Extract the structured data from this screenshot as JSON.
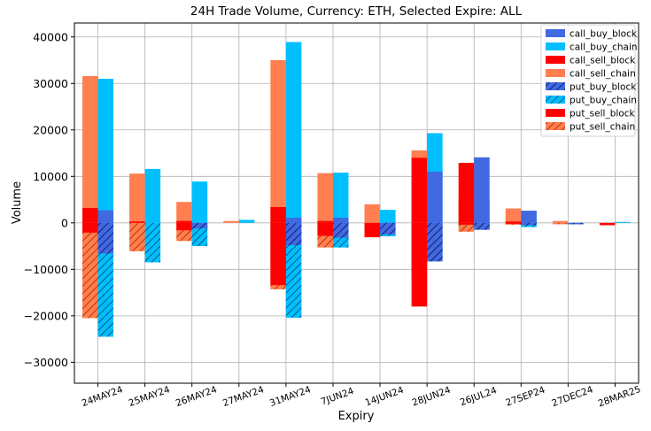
{
  "chart_data": {
    "type": "bar",
    "title": "24H Trade Volume, Currency: ETH, Selected Expire: ALL",
    "xlabel": "Expiry",
    "ylabel": "Volume",
    "ylim": [
      -34500,
      43000
    ],
    "yticks": [
      -30000,
      -20000,
      -10000,
      0,
      10000,
      20000,
      30000,
      40000
    ],
    "ytick_labels": [
      "−30000",
      "−20000",
      "−10000",
      "0",
      "10000",
      "20000",
      "30000",
      "40000"
    ],
    "grid": true,
    "legend_position": "top-right",
    "categories": [
      "24MAY24",
      "25MAY24",
      "26MAY24",
      "27MAY24",
      "31MAY24",
      "7JUN24",
      "14JUN24",
      "28JUN24",
      "26JUL24",
      "27SEP24",
      "27DEC24",
      "28MAR25"
    ],
    "series": [
      {
        "name": "call_buy_block",
        "group": "buy",
        "side": "call",
        "color": "#4169e1",
        "hatch": false,
        "values": [
          2700,
          0,
          0,
          0,
          1100,
          1100,
          0,
          11000,
          14100,
          2600,
          0,
          0
        ]
      },
      {
        "name": "call_buy_chain",
        "group": "buy",
        "side": "call",
        "color": "#00bfff",
        "hatch": false,
        "values": [
          31000,
          11600,
          8900,
          650,
          38900,
          10800,
          2800,
          19300,
          4500,
          2600,
          0,
          200
        ]
      },
      {
        "name": "call_sell_block",
        "group": "sell",
        "side": "call",
        "color": "#ff0000",
        "hatch": false,
        "values": [
          3200,
          300,
          400,
          0,
          3400,
          400,
          0,
          14000,
          12900,
          300,
          0,
          0
        ]
      },
      {
        "name": "call_sell_chain",
        "group": "sell",
        "side": "call",
        "color": "#ff7f50",
        "hatch": false,
        "values": [
          31600,
          10600,
          4500,
          400,
          35000,
          10700,
          4000,
          15600,
          5500,
          3100,
          400,
          0
        ]
      },
      {
        "name": "put_buy_block",
        "group": "buy",
        "side": "put",
        "color": "#4169e1",
        "hatch": true,
        "values": [
          -6600,
          0,
          -1200,
          0,
          -4800,
          -3200,
          -2500,
          -8300,
          -1500,
          -500,
          -300,
          0
        ]
      },
      {
        "name": "put_buy_chain",
        "group": "buy",
        "side": "put",
        "color": "#00bfff",
        "hatch": true,
        "values": [
          -24500,
          -8500,
          -5000,
          0,
          -20400,
          -5300,
          -2900,
          -7700,
          -1200,
          -900,
          -300,
          0
        ]
      },
      {
        "name": "put_sell_block",
        "group": "sell",
        "side": "put",
        "color": "#ff0000",
        "hatch": false,
        "values": [
          -2100,
          0,
          -1600,
          0,
          -13400,
          -2800,
          -3100,
          -18000,
          -400,
          -200,
          0,
          -500
        ]
      },
      {
        "name": "put_sell_chain",
        "group": "sell",
        "side": "put",
        "color": "#ff7f50",
        "hatch": true,
        "values": [
          -20500,
          -6100,
          -3900,
          0,
          -14300,
          -5300,
          -3000,
          -10800,
          -1900,
          -400,
          -300,
          0
        ]
      }
    ]
  }
}
